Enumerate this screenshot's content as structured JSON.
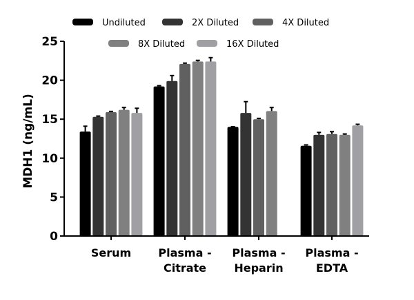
{
  "chart_data": {
    "type": "bar",
    "ylabel": "MDH1 (ng/mL)",
    "ylim": [
      0,
      25
    ],
    "yticks": [
      0,
      5,
      10,
      15,
      20,
      25
    ],
    "grid": false,
    "legend_position": "top",
    "categories": [
      [
        "Serum"
      ],
      [
        "Plasma -",
        "Citrate"
      ],
      [
        "Plasma -",
        "Heparin"
      ],
      [
        "Plasma -",
        "EDTA"
      ]
    ],
    "series": [
      {
        "name": "Undiluted",
        "color": "#000000",
        "values": [
          13.4,
          19.2,
          14.0,
          11.6
        ],
        "errors": [
          0.7,
          0.1,
          0.05,
          0.1
        ]
      },
      {
        "name": "2X Diluted",
        "color": "#333333",
        "values": [
          15.3,
          19.9,
          15.8,
          13.0
        ],
        "errors": [
          0.1,
          0.7,
          1.45,
          0.3
        ]
      },
      {
        "name": "4X Diluted",
        "color": "#606060",
        "values": [
          15.9,
          22.1,
          15.0,
          13.1
        ],
        "errors": [
          0.1,
          0.1,
          0.1,
          0.3
        ]
      },
      {
        "name": "8X Diluted",
        "color": "#808080",
        "values": [
          16.2,
          22.4,
          16.05,
          13.0
        ],
        "errors": [
          0.3,
          0.15,
          0.45,
          0.1
        ]
      },
      {
        "name": "16X Diluted",
        "color": "#a0a0a4",
        "values": [
          15.8,
          22.4,
          null,
          14.2
        ],
        "errors": [
          0.6,
          0.5,
          null,
          0.15
        ]
      }
    ]
  }
}
